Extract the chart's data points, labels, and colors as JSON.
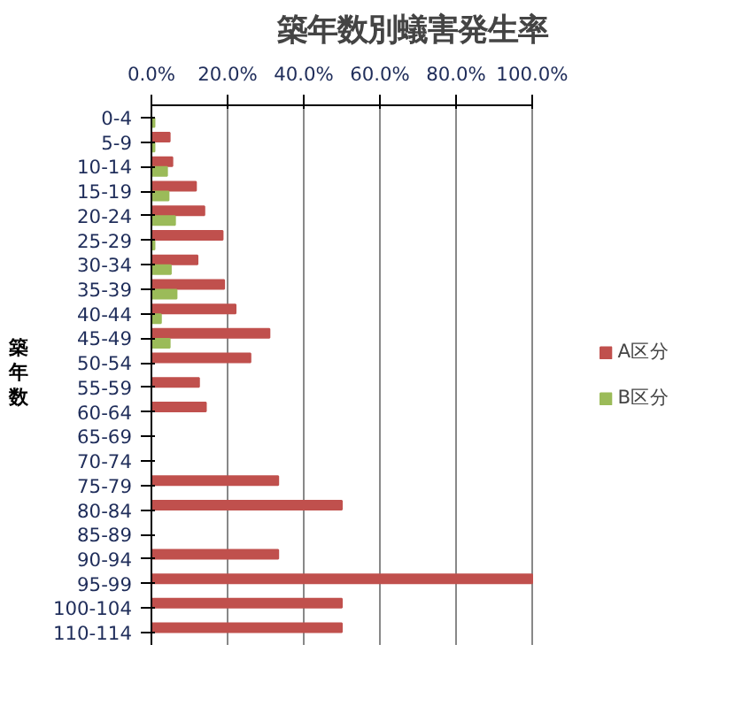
{
  "chart_data": {
    "type": "bar",
    "orientation": "horizontal",
    "title": "築年数別蟻害発生率",
    "ylabel": "築年数",
    "categories": [
      "0-4",
      "5-9",
      "10-14",
      "15-19",
      "20-24",
      "25-29",
      "30-34",
      "35-39",
      "40-44",
      "45-49",
      "50-54",
      "55-59",
      "60-64",
      "65-69",
      "70-74",
      "75-79",
      "80-84",
      "85-89",
      "90-94",
      "95-99",
      "100-104",
      "110-114"
    ],
    "series": [
      {
        "name": "A区分",
        "color": "#c0504d",
        "values": [
          0,
          4.8,
          5.5,
          11.7,
          13.9,
          18.7,
          12.1,
          19.1,
          22.1,
          31.0,
          26.0,
          12.5,
          14.3,
          0,
          0,
          33.3,
          50,
          0,
          33.3,
          100,
          50,
          50
        ]
      },
      {
        "name": "B区分",
        "color": "#9bbb59",
        "values": [
          0.8,
          0.8,
          4.1,
          4.5,
          6.2,
          0.8,
          5.1,
          6.6,
          2.5,
          4.8,
          0,
          0,
          0,
          0,
          0,
          0,
          0,
          0,
          0,
          0,
          0,
          0
        ]
      }
    ],
    "xlim": [
      0,
      100
    ],
    "xticks": [
      {
        "value": 0,
        "label": "0.0%"
      },
      {
        "value": 20,
        "label": "20.0%"
      },
      {
        "value": 40,
        "label": "40.0%"
      },
      {
        "value": 60,
        "label": "60.0%"
      },
      {
        "value": 80,
        "label": "80.0%"
      },
      {
        "value": 100,
        "label": "100.0%"
      }
    ],
    "grid": "x",
    "legend": "right"
  }
}
